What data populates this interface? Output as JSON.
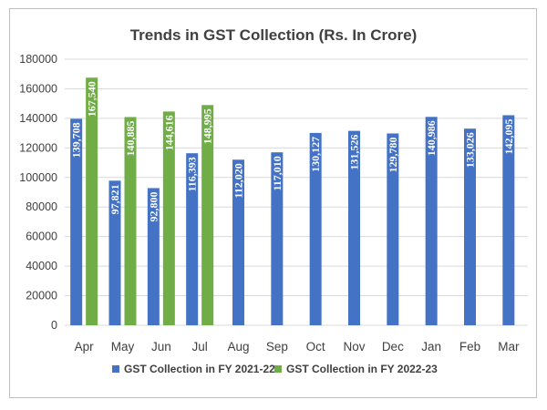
{
  "chart_data": {
    "type": "bar",
    "title": "Trends in GST Collection (Rs. In Crore)",
    "xlabel": "",
    "ylabel": "",
    "categories": [
      "Apr",
      "May",
      "Jun",
      "Jul",
      "Aug",
      "Sep",
      "Oct",
      "Nov",
      "Dec",
      "Jan",
      "Feb",
      "Mar"
    ],
    "series": [
      {
        "name": "GST Collection in FY 2021-22",
        "color": "#4472c4",
        "values": [
          139708,
          97821,
          92800,
          116393,
          112020,
          117010,
          130127,
          131526,
          129780,
          140986,
          133026,
          142095
        ],
        "labels": [
          "139,708",
          "97,821",
          "92,800",
          "116,393",
          "112,020",
          "117,010",
          "130,127",
          "131,526",
          "129,780",
          "140,986",
          "133,026",
          "142,095"
        ]
      },
      {
        "name": "GST Collection in FY 2022-23",
        "color": "#70ad47",
        "values": [
          167540,
          140885,
          144616,
          148995,
          null,
          null,
          null,
          null,
          null,
          null,
          null,
          null
        ],
        "labels": [
          "167,540",
          "140,885",
          "144,616",
          "148,995",
          "",
          "",
          "",
          "",
          "",
          "",
          "",
          ""
        ]
      }
    ],
    "ylim": [
      0,
      180000
    ],
    "yticks": [
      0,
      20000,
      40000,
      60000,
      80000,
      100000,
      120000,
      140000,
      160000,
      180000
    ],
    "grid": true,
    "legend": "bottom"
  }
}
